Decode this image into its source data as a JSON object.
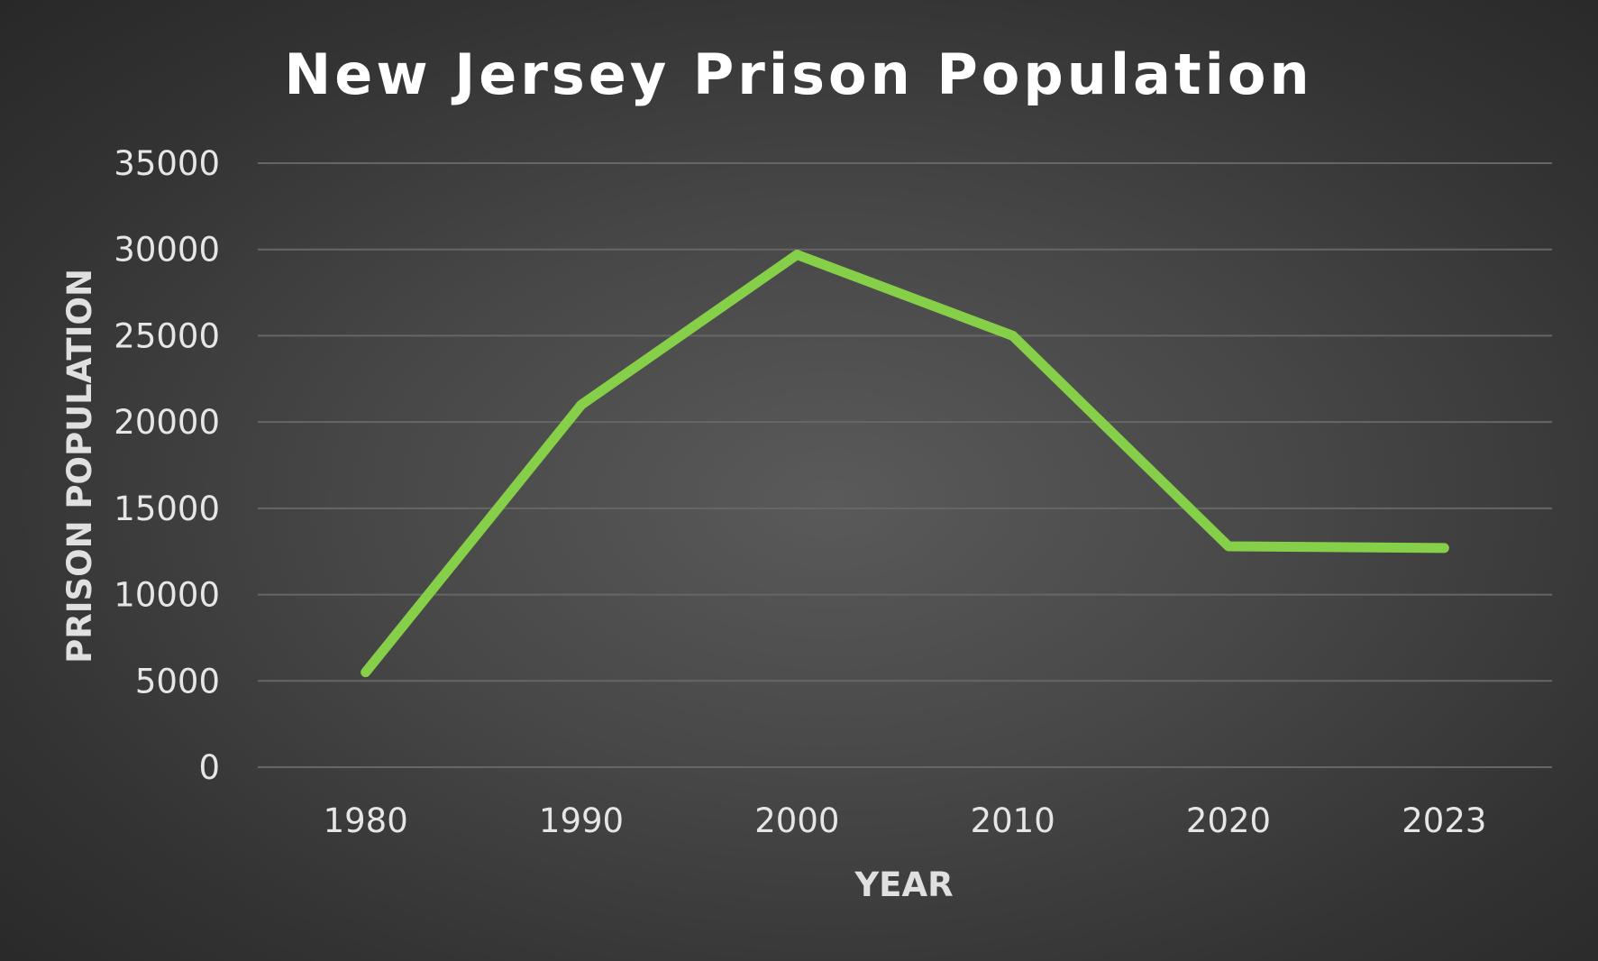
{
  "chart_data": {
    "type": "line",
    "title": "New Jersey Prison Population",
    "xlabel": "YEAR",
    "ylabel": "PRISON POPULATION",
    "categories": [
      "1980",
      "1990",
      "2000",
      "2010",
      "2020",
      "2023"
    ],
    "series": [
      {
        "values": [
          5500,
          21000,
          29700,
          25000,
          12800,
          12700
        ],
        "color": "#86cf48"
      }
    ],
    "ylim": [
      0,
      35000
    ],
    "yticks": [
      "0",
      "5000",
      "10000",
      "15000",
      "20000",
      "25000",
      "30000",
      "35000"
    ],
    "grid": true,
    "legend": "none"
  }
}
